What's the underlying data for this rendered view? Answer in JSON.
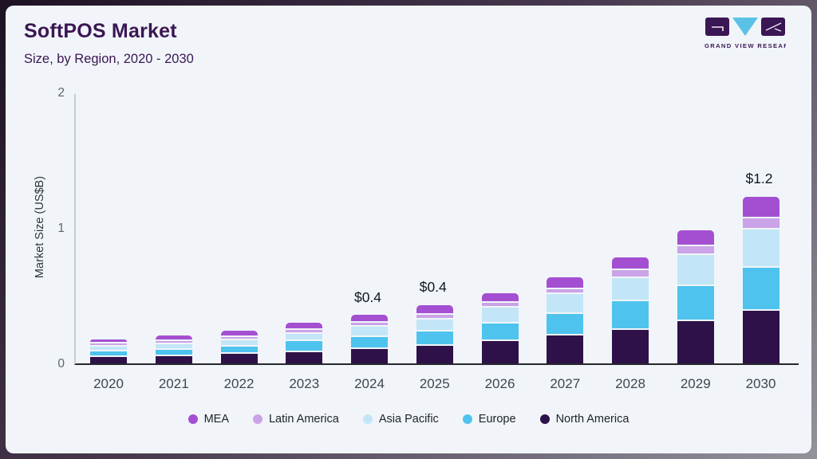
{
  "header": {
    "title": "SoftPOS Market",
    "subtitle": "Size, by Region, 2020 - 2030"
  },
  "logo": {
    "caption": "GRAND VIEW RESEARCH",
    "brand_dark": "#3B1654",
    "brand_blue": "#5BC2E7"
  },
  "chart_data": {
    "type": "bar",
    "stacked": true,
    "title": "SoftPOS Market Size, by Region, 2020 - 2030",
    "ylabel": "Market Size (US$B)",
    "ylim": [
      0,
      2
    ],
    "yticks": [
      "0",
      "1",
      "2"
    ],
    "grid": false,
    "legend_position": "bottom",
    "categories": [
      "2020",
      "2021",
      "2022",
      "2023",
      "2024",
      "2025",
      "2026",
      "2027",
      "2028",
      "2029",
      "2030"
    ],
    "series": [
      {
        "name": "North America",
        "color": "#2E1148",
        "values": [
          0.058,
          0.066,
          0.082,
          0.095,
          0.12,
          0.142,
          0.175,
          0.215,
          0.26,
          0.325,
          0.4
        ]
      },
      {
        "name": "Europe",
        "color": "#4EC3EE",
        "values": [
          0.042,
          0.047,
          0.055,
          0.082,
          0.085,
          0.108,
          0.131,
          0.16,
          0.21,
          0.255,
          0.32
        ]
      },
      {
        "name": "Asia Pacific",
        "color": "#C2E6F7",
        "values": [
          0.033,
          0.039,
          0.045,
          0.053,
          0.078,
          0.084,
          0.118,
          0.147,
          0.172,
          0.229,
          0.28
        ]
      },
      {
        "name": "Latin America",
        "color": "#CBA3E8",
        "values": [
          0.016,
          0.019,
          0.018,
          0.019,
          0.023,
          0.034,
          0.035,
          0.039,
          0.056,
          0.065,
          0.085
        ]
      },
      {
        "name": "MEA",
        "color": "#A44FD2",
        "values": [
          0.026,
          0.039,
          0.045,
          0.055,
          0.059,
          0.075,
          0.069,
          0.085,
          0.098,
          0.121,
          0.155
        ]
      }
    ],
    "value_labels": {
      "2024": "$0.4",
      "2025": "$0.4",
      "2030": "$1.2"
    },
    "legend_order": [
      "MEA",
      "Latin America",
      "Asia Pacific",
      "Europe",
      "North America"
    ]
  }
}
